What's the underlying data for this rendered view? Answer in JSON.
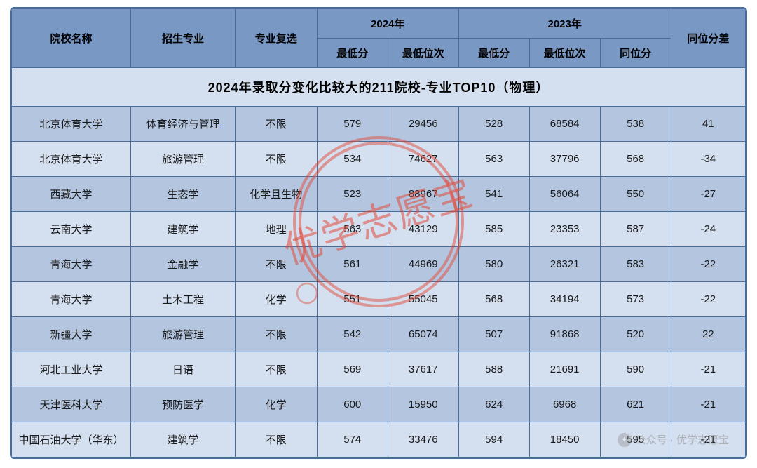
{
  "title": "2024年录取分变化比较大的211院校-专业TOP10（物理）",
  "headers": {
    "school": "院校名称",
    "major": "招生专业",
    "subject": "专业复选",
    "y2024": "2024年",
    "y2023": "2023年",
    "diff": "同位分差",
    "minScore": "最低分",
    "minRank": "最低位次",
    "sameRankScore": "同位分"
  },
  "rows": [
    {
      "school": "北京体育大学",
      "major": "体育经济与管理",
      "subject": "不限",
      "s24": "579",
      "r24": "29456",
      "s23": "528",
      "r23": "68584",
      "p23": "538",
      "diff": "41"
    },
    {
      "school": "北京体育大学",
      "major": "旅游管理",
      "subject": "不限",
      "s24": "534",
      "r24": "74627",
      "s23": "563",
      "r23": "37796",
      "p23": "568",
      "diff": "-34"
    },
    {
      "school": "西藏大学",
      "major": "生态学",
      "subject": "化学且生物",
      "s24": "523",
      "r24": "88967",
      "s23": "541",
      "r23": "56064",
      "p23": "550",
      "diff": "-27"
    },
    {
      "school": "云南大学",
      "major": "建筑学",
      "subject": "地理",
      "s24": "563",
      "r24": "43129",
      "s23": "585",
      "r23": "23353",
      "p23": "587",
      "diff": "-24"
    },
    {
      "school": "青海大学",
      "major": "金融学",
      "subject": "不限",
      "s24": "561",
      "r24": "44969",
      "s23": "580",
      "r23": "26321",
      "p23": "583",
      "diff": "-22"
    },
    {
      "school": "青海大学",
      "major": "土木工程",
      "subject": "化学",
      "s24": "551",
      "r24": "55045",
      "s23": "568",
      "r23": "34194",
      "p23": "573",
      "diff": "-22"
    },
    {
      "school": "新疆大学",
      "major": "旅游管理",
      "subject": "不限",
      "s24": "542",
      "r24": "65074",
      "s23": "507",
      "r23": "91868",
      "p23": "520",
      "diff": "22"
    },
    {
      "school": "河北工业大学",
      "major": "日语",
      "subject": "不限",
      "s24": "569",
      "r24": "37617",
      "s23": "588",
      "r23": "21691",
      "p23": "590",
      "diff": "-21"
    },
    {
      "school": "天津医科大学",
      "major": "预防医学",
      "subject": "化学",
      "s24": "600",
      "r24": "15950",
      "s23": "624",
      "r23": "6968",
      "p23": "621",
      "diff": "-21"
    },
    {
      "school": "中国石油大学（华东）",
      "major": "建筑学",
      "subject": "不限",
      "s24": "574",
      "r24": "33476",
      "s23": "594",
      "r23": "18450",
      "p23": "595",
      "diff": "-21"
    }
  ],
  "watermark": {
    "text": "优学志愿宝",
    "footer": "公众号 · 优学志愿宝",
    "color": "#e24a3a"
  },
  "styling": {
    "header_bg": "#7a98c4",
    "row_even_bg": "#b3c5df",
    "row_odd_bg": "#d4dfef",
    "border_color": "#4a6c9b",
    "title_fontsize": 18,
    "header_fontsize": 15,
    "cell_fontsize": 15
  }
}
